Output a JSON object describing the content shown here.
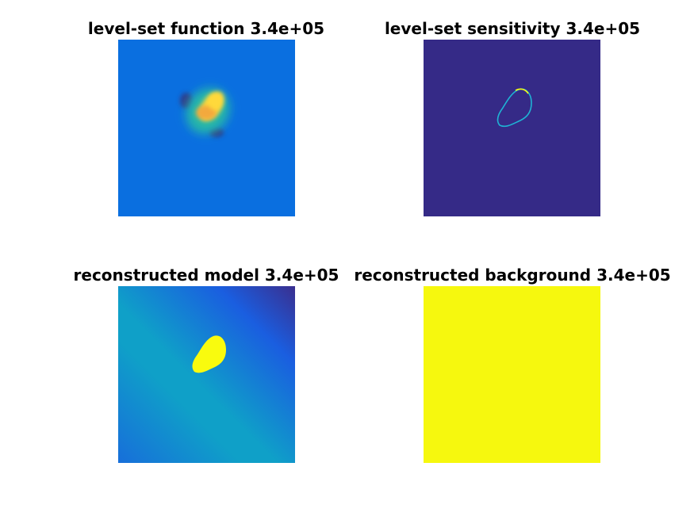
{
  "chart_data": [
    {
      "type": "heatmap",
      "title": "level-set function 3.4e+05",
      "colormap": "parula",
      "colors": {
        "background": "#0a6fe0",
        "peak_high": "#ffd93a",
        "peak_mid": "#f3a93c",
        "negative_lobe": "#2e3a8c"
      }
    },
    {
      "type": "heatmap",
      "title": "level-set sensitivity 3.4e+05",
      "colormap": "parula",
      "colors": {
        "background": "#352a87",
        "contour": "#1fb3d4",
        "contour_high": "#f9fb0e"
      }
    },
    {
      "type": "heatmap",
      "title": "reconstructed model 3.4e+05",
      "colormap": "parula",
      "colors": {
        "background": "#0fa0c8",
        "gradient_low": "#1a5ee0",
        "corner_dark": "#3a2f8f",
        "inclusion": "#f9fb0e"
      }
    },
    {
      "type": "heatmap",
      "title": "reconstructed background 3.4e+05",
      "colormap": "parula",
      "colors": {
        "background": "#f6f80e"
      }
    }
  ]
}
